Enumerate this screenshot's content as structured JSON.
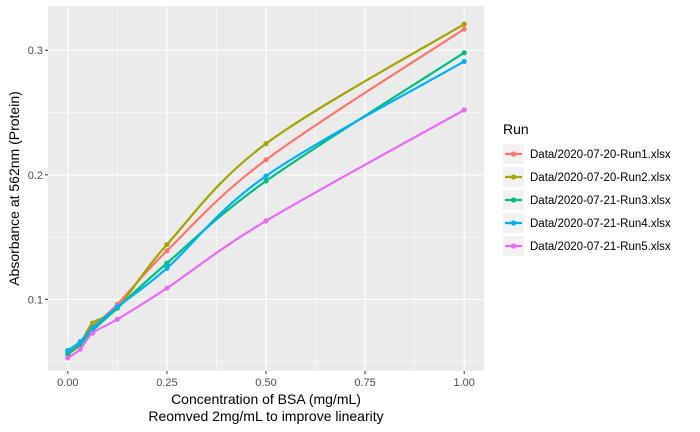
{
  "chart_data": {
    "type": "line",
    "title": "",
    "xlabel": "Concentration of BSA (mg/mL)",
    "xlabel_sub": "Reomved 2mg/mL to improve linearity",
    "ylabel": "Absorbance at 562nm (Protein)",
    "xlim": [
      -0.05,
      1.05
    ],
    "ylim": [
      0.0425,
      0.3355
    ],
    "x_ticks": [
      0.0,
      0.25,
      0.5,
      0.75,
      1.0
    ],
    "x_tick_labels": [
      "0.00",
      "0.25",
      "0.50",
      "0.75",
      "1.00"
    ],
    "y_ticks": [
      0.1,
      0.2,
      0.3
    ],
    "y_tick_labels": [
      "0.1",
      "0.2",
      "0.3"
    ],
    "grid": true,
    "legend_position": "right",
    "legend_title": "Run",
    "x": [
      0.0,
      0.03125,
      0.0625,
      0.125,
      0.25,
      0.5,
      1.0
    ],
    "series": [
      {
        "name": "Data/2020-07-20-Run1.xlsx",
        "color": "#F8766D",
        "values": [
          0.057,
          0.066,
          0.078,
          0.096,
          0.139,
          0.212,
          0.317
        ]
      },
      {
        "name": "Data/2020-07-20-Run2.xlsx",
        "color": "#A3A500",
        "values": [
          0.056,
          0.064,
          0.081,
          0.093,
          0.144,
          0.225,
          0.321
        ]
      },
      {
        "name": "Data/2020-07-21-Run3.xlsx",
        "color": "#00BF7D",
        "values": [
          0.056,
          0.064,
          0.075,
          0.093,
          0.129,
          0.195,
          0.298
        ]
      },
      {
        "name": "Data/2020-07-21-Run4.xlsx",
        "color": "#00B0F6",
        "values": [
          0.059,
          0.066,
          0.077,
          0.094,
          0.125,
          0.199,
          0.291
        ]
      },
      {
        "name": "Data/2020-07-21-Run5.xlsx",
        "color": "#E76BF3",
        "values": [
          0.053,
          0.06,
          0.073,
          0.084,
          0.109,
          0.163,
          0.252
        ]
      }
    ]
  }
}
